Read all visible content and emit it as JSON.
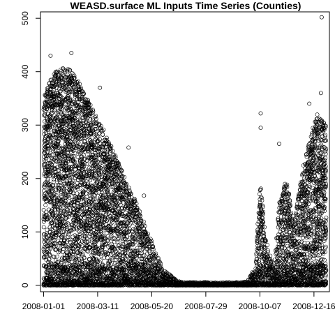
{
  "chart_data": {
    "type": "scatter",
    "title": "WEASD.surface ML Inputs Time Series (Counties)",
    "xlabel": "",
    "ylabel": "",
    "x_tick_labels": [
      "2008-01-01",
      "2008-03-11",
      "2008-05-20",
      "2008-07-29",
      "2008-10-07",
      "2008-12-16"
    ],
    "x_ticks": [
      "2008-01-01",
      "2008-03-11",
      "2008-05-20",
      "2008-07-29",
      "2008-10-07",
      "2008-12-16"
    ],
    "xlim": [
      "2007-12-28",
      "2009-01-05"
    ],
    "y_ticks": [
      0,
      100,
      200,
      300,
      400,
      500
    ],
    "ylim": [
      -12,
      512
    ],
    "marker": "open-circle",
    "grid": false,
    "legend": "none",
    "notable_points": [
      {
        "x": "2008-12-26",
        "y": 502
      },
      {
        "x": "2008-02-06",
        "y": 435
      },
      {
        "x": "2008-01-10",
        "y": 430
      },
      {
        "x": "2008-03-14",
        "y": 370
      },
      {
        "x": "2008-04-20",
        "y": 258
      },
      {
        "x": "2008-05-10",
        "y": 168
      },
      {
        "x": "2008-10-08",
        "y": 322
      },
      {
        "x": "2008-10-08",
        "y": 295
      },
      {
        "x": "2008-11-01",
        "y": 265
      },
      {
        "x": "2008-12-10",
        "y": 340
      },
      {
        "x": "2008-12-25",
        "y": 360
      }
    ],
    "envelope": {
      "description": "approximate range of county values over time",
      "dates": [
        "2008-01-01",
        "2008-01-15",
        "2008-02-01",
        "2008-02-15",
        "2008-03-01",
        "2008-03-15",
        "2008-04-01",
        "2008-04-15",
        "2008-05-01",
        "2008-05-15",
        "2008-05-25",
        "2008-06-05",
        "2008-06-20",
        "2008-07-01",
        "2008-07-29",
        "2008-09-01",
        "2008-09-20",
        "2008-10-01",
        "2008-10-07",
        "2008-10-15",
        "2008-10-25",
        "2008-11-01",
        "2008-11-10",
        "2008-11-20",
        "2008-12-01",
        "2008-12-10",
        "2008-12-20",
        "2008-12-31"
      ],
      "upper": [
        360,
        400,
        410,
        380,
        340,
        300,
        250,
        200,
        150,
        100,
        60,
        30,
        10,
        4,
        3,
        3,
        5,
        40,
        200,
        80,
        40,
        160,
        200,
        120,
        220,
        280,
        320,
        300
      ],
      "lower": [
        0,
        0,
        0,
        0,
        0,
        0,
        0,
        0,
        0,
        0,
        0,
        0,
        0,
        0,
        0,
        0,
        0,
        0,
        0,
        0,
        0,
        0,
        0,
        0,
        0,
        0,
        0,
        0
      ]
    },
    "band": {
      "description": "dense band of near-zero values along the baseline",
      "y_range": [
        0,
        40
      ]
    }
  }
}
